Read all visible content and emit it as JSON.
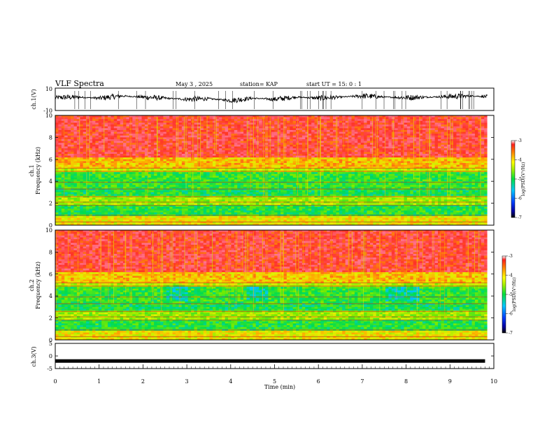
{
  "header": {
    "title": "VLF Spectra",
    "date": "May 3 , 2025",
    "station": "station= KAP",
    "start": "start UT = 15: 0 : 1"
  },
  "chart_data": [
    {
      "type": "line",
      "name": "ch1-waveform",
      "ylabel": "ch.1(V)",
      "ylim": [
        -10,
        10
      ],
      "yticks": [
        "10",
        "-10"
      ],
      "xlim": [
        0,
        10
      ],
      "x": [
        0,
        0.5,
        1,
        1.5,
        2,
        2.5,
        3,
        3.5,
        4,
        4.5,
        5,
        5.5,
        6,
        6.5,
        7,
        7.5,
        8,
        8.5,
        9,
        9.5,
        9.8
      ],
      "values": [
        1.5,
        2,
        1,
        3,
        2,
        1,
        0,
        0.5,
        -1,
        1,
        0,
        2,
        1,
        2,
        3,
        2,
        1.5,
        2,
        2.5,
        3,
        2.5
      ]
    },
    {
      "type": "heatmap",
      "name": "ch1-spectrogram",
      "ylabel": "ch.1\nFrequency (kHz)",
      "ylim": [
        0,
        10
      ],
      "yticks": [
        "0",
        "2",
        "4",
        "6",
        "8",
        "10"
      ],
      "xlim": [
        0,
        10
      ],
      "colorbar": {
        "label": "log(PSD)(V²/Hz)",
        "range": [
          -7,
          -3
        ],
        "ticks": [
          "-3",
          "-4",
          "-5",
          "-6",
          "-7"
        ]
      }
    },
    {
      "type": "heatmap",
      "name": "ch2-spectrogram",
      "ylabel": "ch.2\nFrequency (kHz)",
      "ylim": [
        0,
        10
      ],
      "yticks": [
        "0",
        "2",
        "4",
        "6",
        "8",
        "10"
      ],
      "xlim": [
        0,
        10
      ],
      "colorbar": {
        "label": "log(PSD)(V²/Hz)",
        "range": [
          -7,
          -3
        ],
        "ticks": [
          "-3",
          "-4",
          "-5",
          "-6",
          "-7"
        ]
      }
    },
    {
      "type": "line",
      "name": "ch3-waveform",
      "ylabel": "ch.3(V)",
      "ylim": [
        -5,
        5
      ],
      "yticks": [
        "5",
        "0",
        "-5"
      ],
      "xlim": [
        0,
        10
      ],
      "x": [
        0,
        9.8
      ],
      "values": [
        -2,
        -2
      ],
      "xlabel": "Time (min)",
      "xticks": [
        "0",
        "1",
        "2",
        "3",
        "4",
        "5",
        "6",
        "7",
        "8",
        "9",
        "10"
      ]
    }
  ]
}
